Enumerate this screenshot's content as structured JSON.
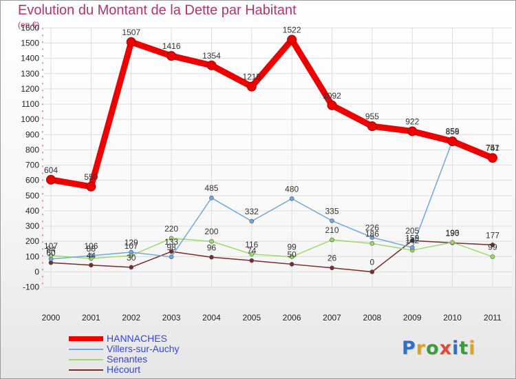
{
  "title": "Evolution du Montant de la Dette par Habitant",
  "subtitle": "(en €)",
  "logo": {
    "text": "Proxiti",
    "letters": [
      {
        "ch": "P",
        "color": "#2f6fc4"
      },
      {
        "ch": "r",
        "color": "#e0a020"
      },
      {
        "ch": "o",
        "color": "#3f9a3f"
      },
      {
        "ch": "x",
        "color": "#d94b3a"
      },
      {
        "ch": "i",
        "color": "#2f6fc4"
      },
      {
        "ch": "t",
        "color": "#3f9a3f"
      },
      {
        "ch": "i",
        "color": "#e0a020"
      }
    ]
  },
  "chart_data": {
    "type": "line",
    "x": [
      "2000",
      "2001",
      "2002",
      "2003",
      "2004",
      "2005",
      "2006",
      "2007",
      "2008",
      "2009",
      "2010",
      "2011"
    ],
    "ylim": [
      -100,
      1600
    ],
    "yticks": [
      -100,
      0,
      100,
      200,
      300,
      400,
      500,
      600,
      700,
      800,
      900,
      1000,
      1100,
      1200,
      1300,
      1400,
      1500,
      1600
    ],
    "grid": true,
    "legend_position": "bottom-left",
    "series": [
      {
        "name": "HANNACHES",
        "color": "#ee0000",
        "values": [
          604,
          559,
          1507,
          1416,
          1354,
          1215,
          1522,
          1092,
          955,
          922,
          856,
          747
        ],
        "labels": [
          "604",
          "559",
          "1507",
          "1416",
          "1354",
          "1215",
          "1522",
          "1092",
          "955",
          "922",
          "856",
          "747"
        ]
      },
      {
        "name": "Villers-sur-Auchy",
        "color": "#6fa8dc",
        "values": [
          84,
          106,
          129,
          98,
          485,
          332,
          480,
          335,
          226,
          159,
          859,
          751
        ],
        "labels": [
          "84",
          "106",
          "129",
          "98",
          "485",
          "332",
          "480",
          "335",
          "226",
          "159",
          "859",
          "751"
        ]
      },
      {
        "name": "Senantes",
        "color": "#99dd66",
        "values": [
          107,
          88,
          107,
          220,
          200,
          116,
          99,
          210,
          186,
          142,
          193,
          99
        ],
        "labels": [
          "107",
          "88",
          "107",
          "220",
          "200",
          "116",
          "99",
          "210",
          "186",
          "142",
          "193",
          "99"
        ]
      },
      {
        "name": "Hécourt",
        "color": "#7a2a2a",
        "values": [
          60,
          44,
          30,
          133,
          96,
          74,
          50,
          26,
          0,
          205,
          190,
          177
        ],
        "labels": [
          "60",
          "44",
          "30",
          "133",
          "96",
          "74",
          "50",
          "26",
          "0",
          "205",
          "190",
          "177"
        ]
      }
    ]
  }
}
